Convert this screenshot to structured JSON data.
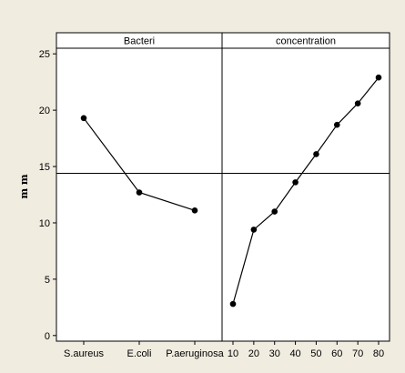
{
  "chart_data": {
    "type": "line",
    "title": "",
    "ylabel": "m m",
    "ylim": [
      -0.5,
      25.5
    ],
    "yticks": [
      0,
      5,
      10,
      15,
      20,
      25
    ],
    "reference_line_y": 14.4,
    "grid": false,
    "panels": [
      {
        "title": "Bacteri",
        "categories": [
          "S.aureus",
          "E.coli",
          "P.aeruginosa"
        ],
        "values": [
          19.3,
          12.7,
          11.1
        ]
      },
      {
        "title": "concentration",
        "categories": [
          "10",
          "20",
          "30",
          "40",
          "50",
          "60",
          "70",
          "80"
        ],
        "values": [
          2.8,
          9.4,
          11.0,
          13.6,
          16.1,
          18.7,
          20.6,
          22.9
        ]
      }
    ]
  },
  "colors": {
    "background": "#f0ece0",
    "plot_area": "#ffffff",
    "line": "#000000",
    "marker": "#000000"
  }
}
